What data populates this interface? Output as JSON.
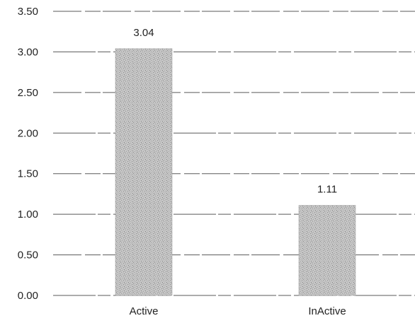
{
  "chart_data": {
    "type": "bar",
    "categories": [
      "Active",
      "InActive"
    ],
    "values": [
      3.04,
      1.11
    ],
    "data_labels": [
      "3.04",
      "1.11"
    ],
    "ylim": [
      0,
      3.5
    ],
    "y_ticks": [
      0,
      0.5,
      1.0,
      1.5,
      2.0,
      2.5,
      3.0,
      3.5
    ],
    "y_tick_labels": [
      "0.00",
      "0.50",
      "1.00",
      "1.50",
      "2.00",
      "2.50",
      "3.00",
      "3.50"
    ],
    "title": "",
    "xlabel": "",
    "ylabel": "",
    "grid": true,
    "legend": "none"
  },
  "colors": {
    "bar_fill": "#bdbdbd",
    "bar_speckle": "#8a8a8a",
    "gridline": "#5a5a5a",
    "text": "#222222"
  }
}
